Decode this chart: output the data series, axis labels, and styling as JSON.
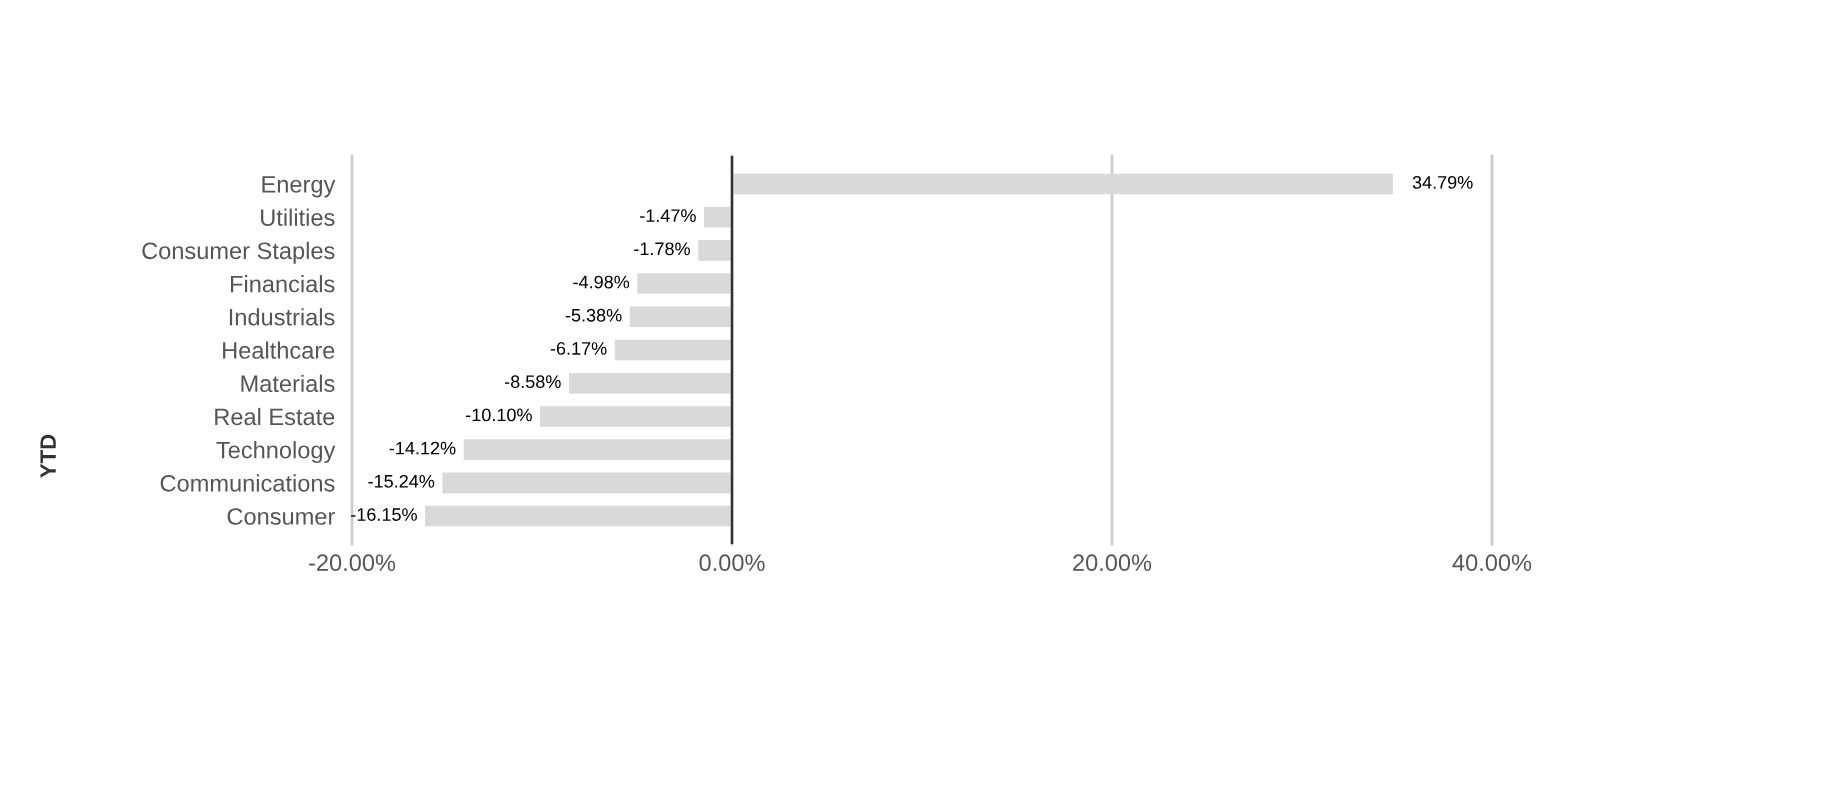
{
  "chart_data": {
    "type": "bar",
    "orientation": "horizontal",
    "ylabel": "YTD",
    "categories": [
      "Energy",
      "Utilities",
      "Consumer Staples",
      "Financials",
      "Industrials",
      "Healthcare",
      "Materials",
      "Real Estate",
      "Technology",
      "Communications",
      "Consumer"
    ],
    "values": [
      34.79,
      -1.47,
      -1.78,
      -4.98,
      -5.38,
      -6.17,
      -8.58,
      -10.1,
      -14.12,
      -15.24,
      -16.15
    ],
    "value_labels": [
      "34.79%",
      "-1.47%",
      "-1.78%",
      "-4.98%",
      "-5.38%",
      "-6.17%",
      "-8.58%",
      "-10.10%",
      "-14.12%",
      "-15.24%",
      "-16.15%"
    ],
    "color": "#d9d9d9",
    "xlim": [
      -20,
      40
    ],
    "xticks": [
      {
        "value": -20,
        "label": "-20.00%"
      },
      {
        "value": 0,
        "label": "0.00%"
      },
      {
        "value": 20,
        "label": "20.00%"
      },
      {
        "value": 40,
        "label": "40.00%"
      }
    ],
    "grid": "x",
    "legend": false
  }
}
